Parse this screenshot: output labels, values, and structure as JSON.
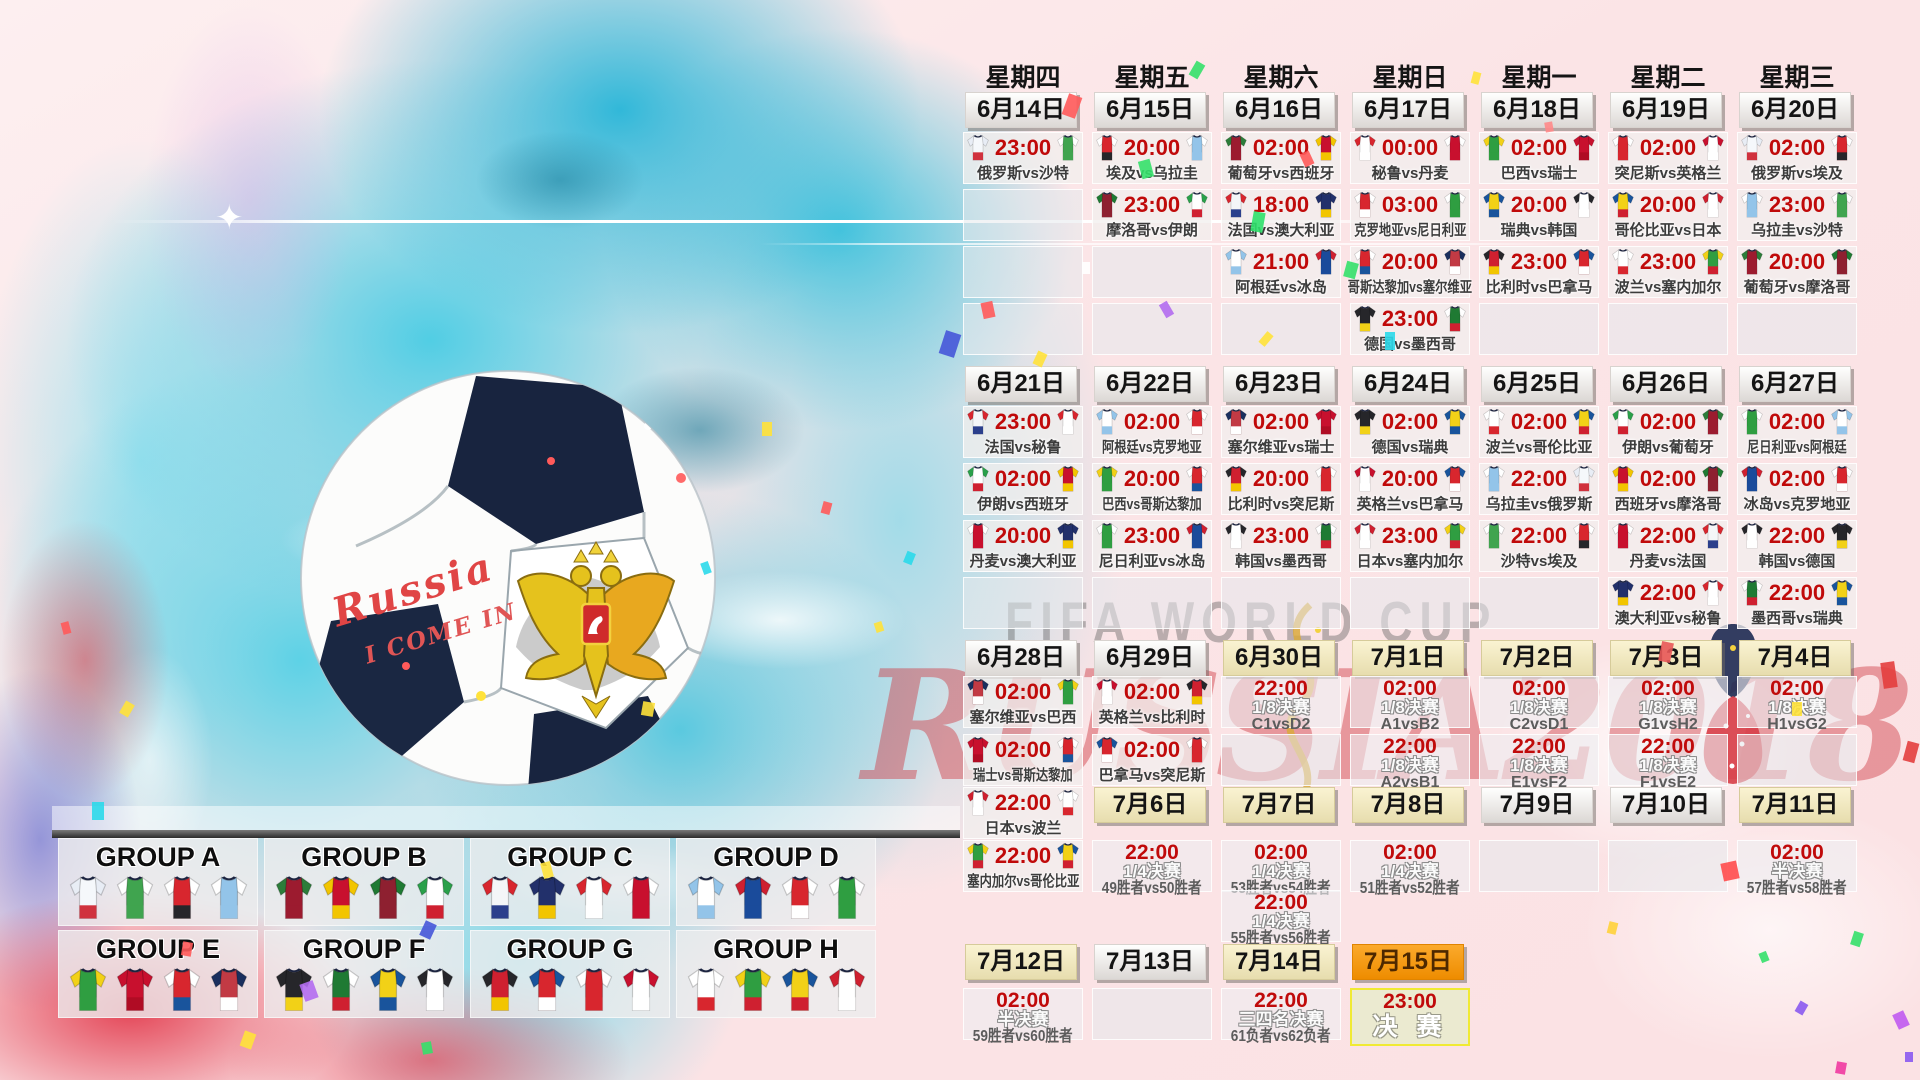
{
  "watermark": {
    "line1": "FIFA WORLD CUP",
    "line2": "RUSSIA2018"
  },
  "ball": {
    "script1": "Russia",
    "script2": "I COME IN"
  },
  "teams": {
    "俄罗斯": [
      "#e8edf5",
      "#f5f8fb",
      "#d0323e"
    ],
    "沙特": [
      "#ffffff",
      "#40a44f",
      "#40a44f"
    ],
    "埃及": [
      "#ffffff",
      "#d8262e",
      "#26262a"
    ],
    "乌拉圭": [
      "#ffffff",
      "#93c4e9",
      "#93c4e9"
    ],
    "葡萄牙": [
      "#2c7d3a",
      "#9c1b2f",
      "#9c1b2f"
    ],
    "西班牙": [
      "#f2c500",
      "#c8102e",
      "#f2c500"
    ],
    "摩洛哥": [
      "#1f7a33",
      "#8e2030",
      "#8e2030"
    ],
    "伊朗": [
      "#2aa04a",
      "#ffffff",
      "#cf2030"
    ],
    "法国": [
      "#d8262e",
      "#f4f6f8",
      "#2b3f8c"
    ],
    "澳大利亚": [
      "#22306b",
      "#22306b",
      "#f2c500"
    ],
    "秘鲁": [
      "#d8262e",
      "#ffffff",
      "#ffffff"
    ],
    "丹麦": [
      "#ffffff",
      "#c8102e",
      "#c8102e"
    ],
    "巴西": [
      "#f2d117",
      "#2f9e41",
      "#2f9e41"
    ],
    "瑞士": [
      "#c8102e",
      "#c8102e",
      "#b00c24"
    ],
    "突尼斯": [
      "#ffffff",
      "#d8262e",
      "#d8262e"
    ],
    "英格兰": [
      "#c8102e",
      "#ffffff",
      "#ffffff"
    ],
    "克罗地亚": [
      "#ffffff",
      "#d8262e",
      "#ffffff"
    ],
    "尼日利亚": [
      "#ffffff",
      "#2f9e41",
      "#2f9e41"
    ],
    "瑞典": [
      "#19549c",
      "#f2d117",
      "#19549c"
    ],
    "韩国": [
      "#26262a",
      "#ffffff",
      "#ffffff"
    ],
    "哥伦比亚": [
      "#19549c",
      "#f2d117",
      "#cf2030"
    ],
    "日本": [
      "#cf2030",
      "#ffffff",
      "#ffffff"
    ],
    "阿根廷": [
      "#93c4e9",
      "#ffffff",
      "#93c4e9"
    ],
    "冰岛": [
      "#cf2030",
      "#1a4b9b",
      "#1a4b9b"
    ],
    "哥斯达黎加": [
      "#ffffff",
      "#d8262e",
      "#19549c"
    ],
    "塞尔维亚": [
      "#1a2f5e",
      "#c23a44",
      "#ffffff"
    ],
    "德国": [
      "#26262a",
      "#26262a",
      "#f2d117"
    ],
    "墨西哥": [
      "#ffffff",
      "#1f7a33",
      "#cf2030"
    ],
    "比利时": [
      "#26262a",
      "#cf2030",
      "#f2c500"
    ],
    "巴拿马": [
      "#19549c",
      "#d8262e",
      "#ffffff"
    ],
    "波兰": [
      "#ffffff",
      "#ffffff",
      "#d8262e"
    ],
    "塞内加尔": [
      "#f2d117",
      "#2f9e41",
      "#cf2030"
    ]
  },
  "calendar": {
    "bands": [
      {
        "kind": "weekday",
        "cells": [
          {
            "k": "wd",
            "label": "星期四"
          },
          {
            "k": "wd",
            "label": "星期五"
          },
          {
            "k": "wd",
            "label": "星期六"
          },
          {
            "k": "wd",
            "label": "星期日"
          },
          {
            "k": "wd",
            "label": "星期一"
          },
          {
            "k": "wd",
            "label": "星期二"
          },
          {
            "k": "wd",
            "label": "星期三"
          }
        ]
      },
      {
        "kind": "date",
        "cells": [
          {
            "k": "date",
            "label": "6月14日",
            "style": "white"
          },
          {
            "k": "date",
            "label": "6月15日",
            "style": "white"
          },
          {
            "k": "date",
            "label": "6月16日",
            "style": "white"
          },
          {
            "k": "date",
            "label": "6月17日",
            "style": "white"
          },
          {
            "k": "date",
            "label": "6月18日",
            "style": "white"
          },
          {
            "k": "date",
            "label": "6月19日",
            "style": "white"
          },
          {
            "k": "date",
            "label": "6月20日",
            "style": "white"
          }
        ]
      },
      {
        "kind": "row",
        "cells": [
          {
            "k": "match",
            "time": "23:00",
            "t1": "俄罗斯",
            "t2": "沙特",
            "label": "俄罗斯vs沙特"
          },
          {
            "k": "match",
            "time": "20:00",
            "t1": "埃及",
            "t2": "乌拉圭",
            "label": "埃及vs乌拉圭"
          },
          {
            "k": "match",
            "time": "02:00",
            "t1": "葡萄牙",
            "t2": "西班牙",
            "label": "葡萄牙vs西班牙"
          },
          {
            "k": "match",
            "time": "00:00",
            "t1": "秘鲁",
            "t2": "丹麦",
            "label": "秘鲁vs丹麦"
          },
          {
            "k": "match",
            "time": "02:00",
            "t1": "巴西",
            "t2": "瑞士",
            "label": "巴西vs瑞士"
          },
          {
            "k": "match",
            "time": "02:00",
            "t1": "突尼斯",
            "t2": "英格兰",
            "label": "突尼斯vs英格兰"
          },
          {
            "k": "match",
            "time": "02:00",
            "t1": "俄罗斯",
            "t2": "埃及",
            "label": "俄罗斯vs埃及"
          }
        ]
      },
      {
        "kind": "row",
        "cells": [
          {
            "k": "empty"
          },
          {
            "k": "match",
            "time": "23:00",
            "t1": "摩洛哥",
            "t2": "伊朗",
            "label": "摩洛哥vs伊朗"
          },
          {
            "k": "match",
            "time": "18:00",
            "t1": "法国",
            "t2": "澳大利亚",
            "label": "法国vs澳大利亚"
          },
          {
            "k": "match",
            "time": "03:00",
            "t1": "克罗地亚",
            "t2": "尼日利亚",
            "label": "克罗地亚vs尼日利亚"
          },
          {
            "k": "match",
            "time": "20:00",
            "t1": "瑞典",
            "t2": "韩国",
            "label": "瑞典vs韩国"
          },
          {
            "k": "match",
            "time": "20:00",
            "t1": "哥伦比亚",
            "t2": "日本",
            "label": "哥伦比亚vs日本"
          },
          {
            "k": "match",
            "time": "23:00",
            "t1": "乌拉圭",
            "t2": "沙特",
            "label": "乌拉圭vs沙特"
          }
        ]
      },
      {
        "kind": "row",
        "cells": [
          {
            "k": "empty"
          },
          {
            "k": "empty"
          },
          {
            "k": "match",
            "time": "21:00",
            "t1": "阿根廷",
            "t2": "冰岛",
            "label": "阿根廷vs冰岛"
          },
          {
            "k": "match",
            "time": "20:00",
            "t1": "哥斯达黎加",
            "t2": "塞尔维亚",
            "label": "哥斯达黎加vs塞尔维亚"
          },
          {
            "k": "match",
            "time": "23:00",
            "t1": "比利时",
            "t2": "巴拿马",
            "label": "比利时vs巴拿马"
          },
          {
            "k": "match",
            "time": "23:00",
            "t1": "波兰",
            "t2": "塞内加尔",
            "label": "波兰vs塞内加尔"
          },
          {
            "k": "match",
            "time": "20:00",
            "t1": "葡萄牙",
            "t2": "摩洛哥",
            "label": "葡萄牙vs摩洛哥"
          }
        ]
      },
      {
        "kind": "row",
        "cells": [
          {
            "k": "empty"
          },
          {
            "k": "empty"
          },
          {
            "k": "empty"
          },
          {
            "k": "match",
            "time": "23:00",
            "t1": "德国",
            "t2": "墨西哥",
            "label": "德国vs墨西哥"
          },
          {
            "k": "empty"
          },
          {
            "k": "empty"
          },
          {
            "k": "empty"
          }
        ]
      },
      {
        "kind": "date",
        "cells": [
          {
            "k": "date",
            "label": "6月21日",
            "style": "white"
          },
          {
            "k": "date",
            "label": "6月22日",
            "style": "white"
          },
          {
            "k": "date",
            "label": "6月23日",
            "style": "white"
          },
          {
            "k": "date",
            "label": "6月24日",
            "style": "white"
          },
          {
            "k": "date",
            "label": "6月25日",
            "style": "white"
          },
          {
            "k": "date",
            "label": "6月26日",
            "style": "white"
          },
          {
            "k": "date",
            "label": "6月27日",
            "style": "white"
          }
        ]
      },
      {
        "kind": "row",
        "cells": [
          {
            "k": "match",
            "time": "23:00",
            "t1": "法国",
            "t2": "秘鲁",
            "label": "法国vs秘鲁"
          },
          {
            "k": "match",
            "time": "02:00",
            "t1": "阿根廷",
            "t2": "克罗地亚",
            "label": "阿根廷vs克罗地亚"
          },
          {
            "k": "match",
            "time": "02:00",
            "t1": "塞尔维亚",
            "t2": "瑞士",
            "label": "塞尔维亚vs瑞士"
          },
          {
            "k": "match",
            "time": "02:00",
            "t1": "德国",
            "t2": "瑞典",
            "label": "德国vs瑞典"
          },
          {
            "k": "match",
            "time": "02:00",
            "t1": "波兰",
            "t2": "哥伦比亚",
            "label": "波兰vs哥伦比亚"
          },
          {
            "k": "match",
            "time": "02:00",
            "t1": "伊朗",
            "t2": "葡萄牙",
            "label": "伊朗vs葡萄牙"
          },
          {
            "k": "match",
            "time": "02:00",
            "t1": "尼日利亚",
            "t2": "阿根廷",
            "label": "尼日利亚vs阿根廷"
          }
        ]
      },
      {
        "kind": "row",
        "cells": [
          {
            "k": "match",
            "time": "02:00",
            "t1": "伊朗",
            "t2": "西班牙",
            "label": "伊朗vs西班牙"
          },
          {
            "k": "match",
            "time": "20:00",
            "t1": "巴西",
            "t2": "哥斯达黎加",
            "label": "巴西vs哥斯达黎加"
          },
          {
            "k": "match",
            "time": "20:00",
            "t1": "比利时",
            "t2": "突尼斯",
            "label": "比利时vs突尼斯"
          },
          {
            "k": "match",
            "time": "20:00",
            "t1": "英格兰",
            "t2": "巴拿马",
            "label": "英格兰vs巴拿马"
          },
          {
            "k": "match",
            "time": "22:00",
            "t1": "乌拉圭",
            "t2": "俄罗斯",
            "label": "乌拉圭vs俄罗斯"
          },
          {
            "k": "match",
            "time": "02:00",
            "t1": "西班牙",
            "t2": "摩洛哥",
            "label": "西班牙vs摩洛哥"
          },
          {
            "k": "match",
            "time": "02:00",
            "t1": "冰岛",
            "t2": "克罗地亚",
            "label": "冰岛vs克罗地亚"
          }
        ]
      },
      {
        "kind": "row",
        "cells": [
          {
            "k": "match",
            "time": "20:00",
            "t1": "丹麦",
            "t2": "澳大利亚",
            "label": "丹麦vs澳大利亚"
          },
          {
            "k": "match",
            "time": "23:00",
            "t1": "尼日利亚",
            "t2": "冰岛",
            "label": "尼日利亚vs冰岛"
          },
          {
            "k": "match",
            "time": "23:00",
            "t1": "韩国",
            "t2": "墨西哥",
            "label": "韩国vs墨西哥"
          },
          {
            "k": "match",
            "time": "23:00",
            "t1": "日本",
            "t2": "塞内加尔",
            "label": "日本vs塞内加尔"
          },
          {
            "k": "match",
            "time": "22:00",
            "t1": "沙特",
            "t2": "埃及",
            "label": "沙特vs埃及"
          },
          {
            "k": "match",
            "time": "22:00",
            "t1": "丹麦",
            "t2": "法国",
            "label": "丹麦vs法国"
          },
          {
            "k": "match",
            "time": "22:00",
            "t1": "韩国",
            "t2": "德国",
            "label": "韩国vs德国"
          }
        ]
      },
      {
        "kind": "row",
        "cells": [
          {
            "k": "empty"
          },
          {
            "k": "empty"
          },
          {
            "k": "empty"
          },
          {
            "k": "empty"
          },
          {
            "k": "empty"
          },
          {
            "k": "match",
            "time": "22:00",
            "t1": "澳大利亚",
            "t2": "秘鲁",
            "label": "澳大利亚vs秘鲁"
          },
          {
            "k": "match",
            "time": "22:00",
            "t1": "墨西哥",
            "t2": "瑞典",
            "label": "墨西哥vs瑞典"
          }
        ]
      },
      {
        "kind": "date",
        "cells": [
          {
            "k": "date",
            "label": "6月28日",
            "style": "white"
          },
          {
            "k": "date",
            "label": "6月29日",
            "style": "white"
          },
          {
            "k": "date",
            "label": "6月30日",
            "style": "cream"
          },
          {
            "k": "date",
            "label": "7月1日",
            "style": "cream"
          },
          {
            "k": "date",
            "label": "7月2日",
            "style": "cream"
          },
          {
            "k": "date",
            "label": "7月3日",
            "style": "cream"
          },
          {
            "k": "date",
            "label": "7月4日",
            "style": "cream"
          }
        ]
      },
      {
        "kind": "row",
        "cells": [
          {
            "k": "match",
            "time": "02:00",
            "t1": "塞尔维亚",
            "t2": "巴西",
            "label": "塞尔维亚vs巴西"
          },
          {
            "k": "match",
            "time": "02:00",
            "t1": "英格兰",
            "t2": "比利时",
            "label": "英格兰vs比利时"
          },
          {
            "k": "ko",
            "time": "22:00",
            "stage": "1/8决赛",
            "line": "C1vsD2"
          },
          {
            "k": "ko",
            "time": "02:00",
            "stage": "1/8决赛",
            "line": "A1vsB2"
          },
          {
            "k": "ko",
            "time": "02:00",
            "stage": "1/8决赛",
            "line": "C2vsD1"
          },
          {
            "k": "ko",
            "time": "02:00",
            "stage": "1/8决赛",
            "line": "G1vsH2"
          },
          {
            "k": "ko",
            "time": "02:00",
            "stage": "1/8决赛",
            "line": "H1vsG2"
          }
        ]
      },
      {
        "kind": "row",
        "cells": [
          {
            "k": "match",
            "time": "02:00",
            "t1": "瑞士",
            "t2": "哥斯达黎加",
            "label": "瑞士vs哥斯达黎加"
          },
          {
            "k": "match",
            "time": "02:00",
            "t1": "巴拿马",
            "t2": "突尼斯",
            "label": "巴拿马vs突尼斯"
          },
          {
            "k": "empty"
          },
          {
            "k": "ko",
            "time": "22:00",
            "stage": "1/8决赛",
            "line": "A2vsB1"
          },
          {
            "k": "ko",
            "time": "22:00",
            "stage": "1/8决赛",
            "line": "E1vsF2"
          },
          {
            "k": "ko",
            "time": "22:00",
            "stage": "1/8决赛",
            "line": "F1vsE2"
          },
          {
            "k": "empty"
          }
        ]
      },
      {
        "kind": "mixed",
        "cells": [
          {
            "k": "match",
            "time": "22:00",
            "t1": "日本",
            "t2": "波兰",
            "label": "日本vs波兰"
          },
          {
            "k": "date",
            "label": "7月6日",
            "style": "cream"
          },
          {
            "k": "date",
            "label": "7月7日",
            "style": "cream"
          },
          {
            "k": "date",
            "label": "7月8日",
            "style": "cream"
          },
          {
            "k": "date",
            "label": "7月9日",
            "style": "white"
          },
          {
            "k": "date",
            "label": "7月10日",
            "style": "white"
          },
          {
            "k": "date",
            "label": "7月11日",
            "style": "cream"
          }
        ]
      },
      {
        "kind": "row",
        "cells": [
          {
            "k": "match",
            "time": "22:00",
            "t1": "塞内加尔",
            "t2": "哥伦比亚",
            "label": "塞内加尔vs哥伦比亚"
          },
          {
            "k": "ko",
            "time": "22:00",
            "stage": "1/4决赛",
            "line": "49胜者vs50胜者"
          },
          {
            "k": "ko",
            "time": "02:00",
            "stage": "1/4决赛",
            "line": "53胜者vs54胜者"
          },
          {
            "k": "ko",
            "time": "02:00",
            "stage": "1/4决赛",
            "line": "51胜者vs52胜者"
          },
          {
            "k": "empty"
          },
          {
            "k": "empty"
          },
          {
            "k": "ko",
            "time": "02:00",
            "stage": "半决赛",
            "line": "57胜者vs58胜者"
          }
        ]
      },
      {
        "kind": "row",
        "cells": [
          null,
          null,
          {
            "k": "ko",
            "time": "22:00",
            "stage": "1/4决赛",
            "line": "55胜者vs56胜者"
          },
          null,
          null,
          null,
          null
        ]
      },
      {
        "kind": "date",
        "cells": [
          {
            "k": "date",
            "label": "7月12日",
            "style": "cream"
          },
          {
            "k": "date",
            "label": "7月13日",
            "style": "white"
          },
          {
            "k": "date",
            "label": "7月14日",
            "style": "cream"
          },
          {
            "k": "date",
            "label": "7月15日",
            "style": "orange"
          },
          null,
          null,
          null
        ]
      },
      {
        "kind": "row",
        "cells": [
          {
            "k": "ko",
            "time": "02:00",
            "stage": "半决赛",
            "line": "59胜者vs60胜者"
          },
          {
            "k": "empty"
          },
          {
            "k": "ko",
            "time": "22:00",
            "stage": "三四名决赛",
            "line": "61负者vs62负者"
          },
          {
            "k": "final",
            "time": "23:00",
            "stage": "决 赛"
          },
          null,
          null,
          null
        ]
      }
    ]
  },
  "groups": [
    {
      "name": "GROUP A",
      "teams": [
        "俄罗斯",
        "沙特",
        "埃及",
        "乌拉圭"
      ]
    },
    {
      "name": "GROUP B",
      "teams": [
        "葡萄牙",
        "西班牙",
        "摩洛哥",
        "伊朗"
      ]
    },
    {
      "name": "GROUP C",
      "teams": [
        "法国",
        "澳大利亚",
        "秘鲁",
        "丹麦"
      ]
    },
    {
      "name": "GROUP D",
      "teams": [
        "阿根廷",
        "冰岛",
        "克罗地亚",
        "尼日利亚"
      ]
    },
    {
      "name": "GROUP E",
      "teams": [
        "巴西",
        "瑞士",
        "哥斯达黎加",
        "塞尔维亚"
      ]
    },
    {
      "name": "GROUP F",
      "teams": [
        "德国",
        "墨西哥",
        "瑞典",
        "韩国"
      ]
    },
    {
      "name": "GROUP G",
      "teams": [
        "比利时",
        "巴拿马",
        "突尼斯",
        "英格兰"
      ]
    },
    {
      "name": "GROUP H",
      "teams": [
        "波兰",
        "塞内加尔",
        "哥伦比亚",
        "日本"
      ]
    }
  ]
}
